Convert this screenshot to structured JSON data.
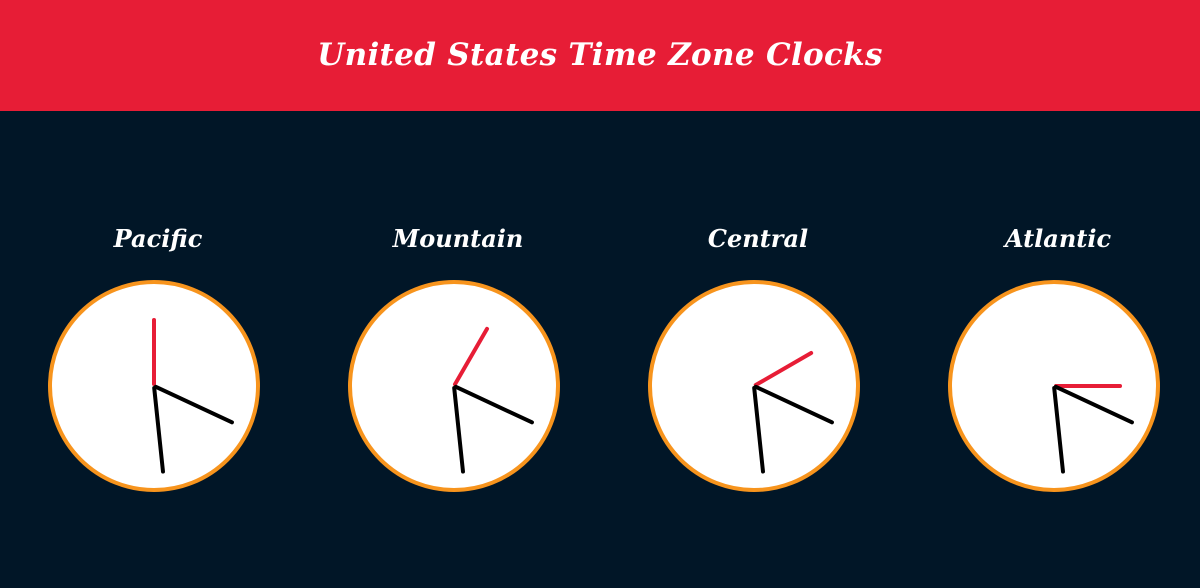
{
  "header": {
    "title": "United States Time Zone Clocks"
  },
  "clocks": [
    {
      "label": "Pacific",
      "hour_hand_angle_deg": 0,
      "minute_hand_angle_deg": 115,
      "second_hand_angle_deg": 174
    },
    {
      "label": "Mountain",
      "hour_hand_angle_deg": 30,
      "minute_hand_angle_deg": 115,
      "second_hand_angle_deg": 174
    },
    {
      "label": "Central",
      "hour_hand_angle_deg": 60,
      "minute_hand_angle_deg": 115,
      "second_hand_angle_deg": 174
    },
    {
      "label": "Atlantic",
      "hour_hand_angle_deg": 90,
      "minute_hand_angle_deg": 115,
      "second_hand_angle_deg": 174
    }
  ],
  "colors": {
    "header_bg": "#e71d36",
    "page_bg": "#011627",
    "clock_face": "#ffffff",
    "clock_border": "#f7941d",
    "hour_hand": "#e71d36",
    "other_hands": "#000000",
    "label_text": "#ffffff"
  }
}
